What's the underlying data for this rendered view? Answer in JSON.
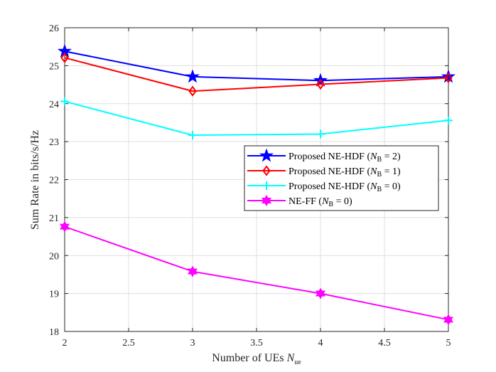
{
  "chart_data": {
    "type": "line",
    "title": "",
    "xlabel": "Number of UEs",
    "xlabel_symbol": "N",
    "xlabel_subscript": "ue",
    "ylabel": "Sum Rate in bits/s/Hz",
    "xlim": [
      2,
      5
    ],
    "ylim": [
      18,
      26
    ],
    "xticks": [
      2,
      2.5,
      3,
      3.5,
      4,
      4.5,
      5
    ],
    "xtick_labels": [
      "2",
      "2.5",
      "3",
      "3.5",
      "4",
      "4.5",
      "5"
    ],
    "yticks": [
      18,
      19,
      20,
      21,
      22,
      23,
      24,
      25,
      26
    ],
    "ytick_labels": [
      "18",
      "19",
      "20",
      "21",
      "22",
      "23",
      "24",
      "25",
      "26"
    ],
    "grid": true,
    "legend_position": "center-right",
    "x": [
      2,
      3,
      4,
      5
    ],
    "series": [
      {
        "name": "Proposed NE-HDF",
        "label_prefix": "Proposed NE-HDF (",
        "label_sym": "N",
        "label_sub": "B",
        "label_suffix": " = 2)",
        "color": "#0000ff",
        "marker": "star",
        "values": [
          25.38,
          24.71,
          24.61,
          24.71
        ]
      },
      {
        "name": "Proposed NE-HDF",
        "label_prefix": "Proposed NE-HDF (",
        "label_sym": "N",
        "label_sub": "B",
        "label_suffix": " = 1)",
        "color": "#ff0000",
        "marker": "diamond",
        "values": [
          25.21,
          24.33,
          24.51,
          24.68
        ]
      },
      {
        "name": "Proposed NE-HDF",
        "label_prefix": "Proposed NE-HDF (",
        "label_sym": "N",
        "label_sub": "B",
        "label_suffix": " = 0)",
        "color": "#00ffff",
        "marker": "plus",
        "values": [
          24.06,
          23.17,
          23.2,
          23.56
        ]
      },
      {
        "name": "NE-FF",
        "label_prefix": "NE-FF (",
        "label_sym": "N",
        "label_sub": "B",
        "label_suffix": " = 0)",
        "color": "#ff00ff",
        "marker": "hexagram",
        "values": [
          20.76,
          19.58,
          19.0,
          18.31
        ]
      }
    ]
  }
}
